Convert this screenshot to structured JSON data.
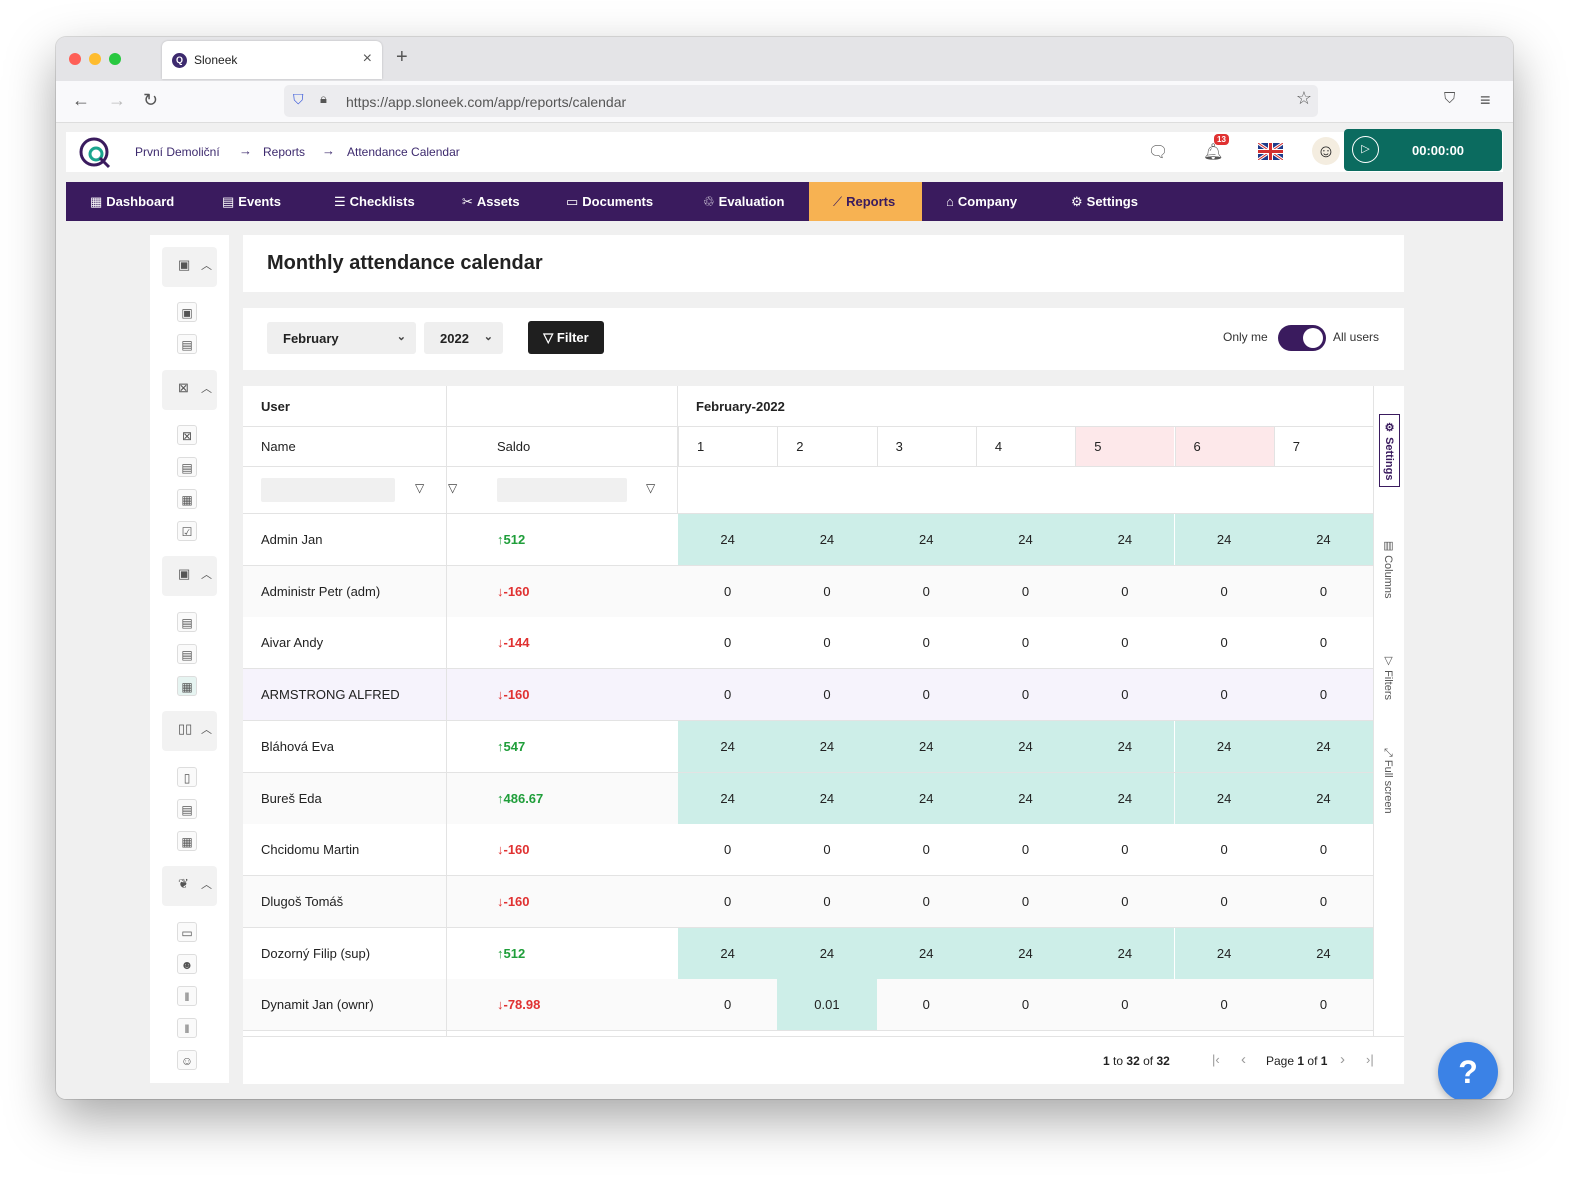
{
  "browser": {
    "tab_title": "Sloneek",
    "tab_close": "×",
    "new_tab": "+",
    "url": "https://app.sloneek.com/app/reports/calendar"
  },
  "header": {
    "breadcrumb": [
      "První Demoliční",
      "Reports",
      "Attendance Calendar"
    ],
    "breadcrumb_sep": "→",
    "notification_count": "13",
    "timer": "00:00:00"
  },
  "menu": [
    {
      "label": "Dashboard",
      "icon": "▦"
    },
    {
      "label": "Events",
      "icon": "▤"
    },
    {
      "label": "Checklists",
      "icon": "☰"
    },
    {
      "label": "Assets",
      "icon": "✂"
    },
    {
      "label": "Documents",
      "icon": "▭"
    },
    {
      "label": "Evaluation",
      "icon": "♲"
    },
    {
      "label": "Reports",
      "icon": "⟋",
      "active": true
    },
    {
      "label": "Company",
      "icon": "⌂"
    },
    {
      "label": "Settings",
      "icon": "⚙"
    }
  ],
  "page_title": "Monthly attendance calendar",
  "filters": {
    "month": "February",
    "year": "2022",
    "filter_button": "Filter",
    "toggle_left": "Only me",
    "toggle_right": "All users",
    "toggle_all_users": true
  },
  "grid": {
    "group_user": "User",
    "group_month": "February-2022",
    "col_name": "Name",
    "col_saldo": "Saldo",
    "days": [
      "1",
      "2",
      "3",
      "4",
      "5",
      "6",
      "7"
    ],
    "weekend_days": [
      "5",
      "6"
    ],
    "rows": [
      {
        "name": "Admin Jan",
        "saldo": "512",
        "dir": "up",
        "values": [
          "24",
          "24",
          "24",
          "24",
          "24",
          "24",
          "24"
        ]
      },
      {
        "name": "Administr Petr (adm)",
        "saldo": "-160",
        "dir": "down",
        "values": [
          "0",
          "0",
          "0",
          "0",
          "0",
          "0",
          "0"
        ]
      },
      {
        "name": "Aivar Andy",
        "saldo": "-144",
        "dir": "down",
        "values": [
          "0",
          "0",
          "0",
          "0",
          "0",
          "0",
          "0"
        ]
      },
      {
        "name": "ARMSTRONG ALFRED",
        "saldo": "-160",
        "dir": "down",
        "values": [
          "0",
          "0",
          "0",
          "0",
          "0",
          "0",
          "0"
        ]
      },
      {
        "name": "Bláhová Eva",
        "saldo": "547",
        "dir": "up",
        "values": [
          "24",
          "24",
          "24",
          "24",
          "24",
          "24",
          "24"
        ]
      },
      {
        "name": "Bureš Eda",
        "saldo": "486.67",
        "dir": "up",
        "values": [
          "24",
          "24",
          "24",
          "24",
          "24",
          "24",
          "24"
        ]
      },
      {
        "name": "Chcidomu Martin",
        "saldo": "-160",
        "dir": "down",
        "values": [
          "0",
          "0",
          "0",
          "0",
          "0",
          "0",
          "0"
        ]
      },
      {
        "name": "Dlugoš Tomáš",
        "saldo": "-160",
        "dir": "down",
        "values": [
          "0",
          "0",
          "0",
          "0",
          "0",
          "0",
          "0"
        ]
      },
      {
        "name": "Dozorný Filip (sup)",
        "saldo": "512",
        "dir": "up",
        "values": [
          "24",
          "24",
          "24",
          "24",
          "24",
          "24",
          "24"
        ]
      },
      {
        "name": "Dynamit Jan (ownr)",
        "saldo": "-78.98",
        "dir": "down",
        "values": [
          "0",
          "0.01",
          "0",
          "0",
          "0",
          "0",
          "0"
        ]
      }
    ],
    "side_tabs": [
      "Settings",
      "Columns",
      "Filters",
      "Full screen"
    ],
    "pagination": {
      "range_from": "1",
      "range_to_word": "to",
      "range_to": "32",
      "of_word": "of",
      "total": "32",
      "page_word": "Page",
      "page": "1",
      "pages": "1"
    }
  },
  "help_label": "?",
  "colors": {
    "menu_bg": "#3a1b5e",
    "menu_active": "#f7b252",
    "timer_bg": "#0b6b5f",
    "cell_full": "#cdeee8",
    "weekend_header": "#fde8ea",
    "positive": "#1f9e3a",
    "negative": "#e03131"
  }
}
